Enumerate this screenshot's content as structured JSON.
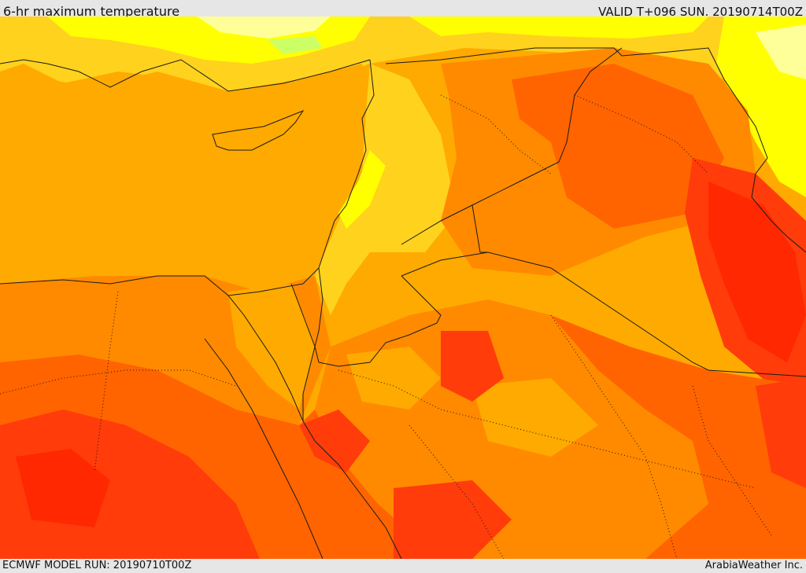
{
  "header": {
    "title": "6-hr maximum temperature",
    "valid": "VALID T+096 SUN. 20190714T00Z"
  },
  "footer": {
    "model_run": "ECMWF MODEL RUN: 20190710T00Z",
    "credit": "ArabiaWeather Inc."
  },
  "map": {
    "colors": {
      "pale_yellow": "#ffff99",
      "light_green": "#ccff66",
      "yellow": "#ffff00",
      "yellow_orange": "#ffd21e",
      "gold": "#ffaa00",
      "orange": "#ff8a00",
      "dark_orange": "#ff6400",
      "red_orange": "#ff3c0a",
      "red": "#ff2800",
      "border": "#1a1a1a"
    }
  }
}
